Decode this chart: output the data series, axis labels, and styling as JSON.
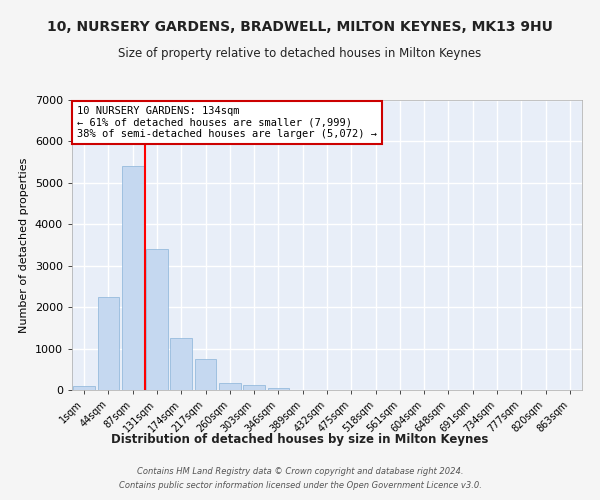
{
  "title": "10, NURSERY GARDENS, BRADWELL, MILTON KEYNES, MK13 9HU",
  "subtitle": "Size of property relative to detached houses in Milton Keynes",
  "xlabel": "Distribution of detached houses by size in Milton Keynes",
  "ylabel": "Number of detached properties",
  "bar_labels": [
    "1sqm",
    "44sqm",
    "87sqm",
    "131sqm",
    "174sqm",
    "217sqm",
    "260sqm",
    "303sqm",
    "346sqm",
    "389sqm",
    "432sqm",
    "475sqm",
    "518sqm",
    "561sqm",
    "604sqm",
    "648sqm",
    "691sqm",
    "734sqm",
    "777sqm",
    "820sqm",
    "863sqm"
  ],
  "bar_values": [
    90,
    2250,
    5400,
    3400,
    1250,
    750,
    175,
    110,
    50,
    8,
    2,
    0,
    0,
    0,
    0,
    0,
    0,
    0,
    0,
    0,
    0
  ],
  "bar_color": "#c5d8f0",
  "bar_edgecolor": "#89b3d9",
  "red_line_index": 2.5,
  "annotation_text": "10 NURSERY GARDENS: 134sqm\n← 61% of detached houses are smaller (7,999)\n38% of semi-detached houses are larger (5,072) →",
  "annotation_box_color": "#ffffff",
  "annotation_border_color": "#cc0000",
  "ylim": [
    0,
    7000
  ],
  "yticks": [
    0,
    1000,
    2000,
    3000,
    4000,
    5000,
    6000,
    7000
  ],
  "background_color": "#e8eef8",
  "grid_color": "#ffffff",
  "fig_background": "#f5f5f5",
  "footer_line1": "Contains HM Land Registry data © Crown copyright and database right 2024.",
  "footer_line2": "Contains public sector information licensed under the Open Government Licence v3.0."
}
